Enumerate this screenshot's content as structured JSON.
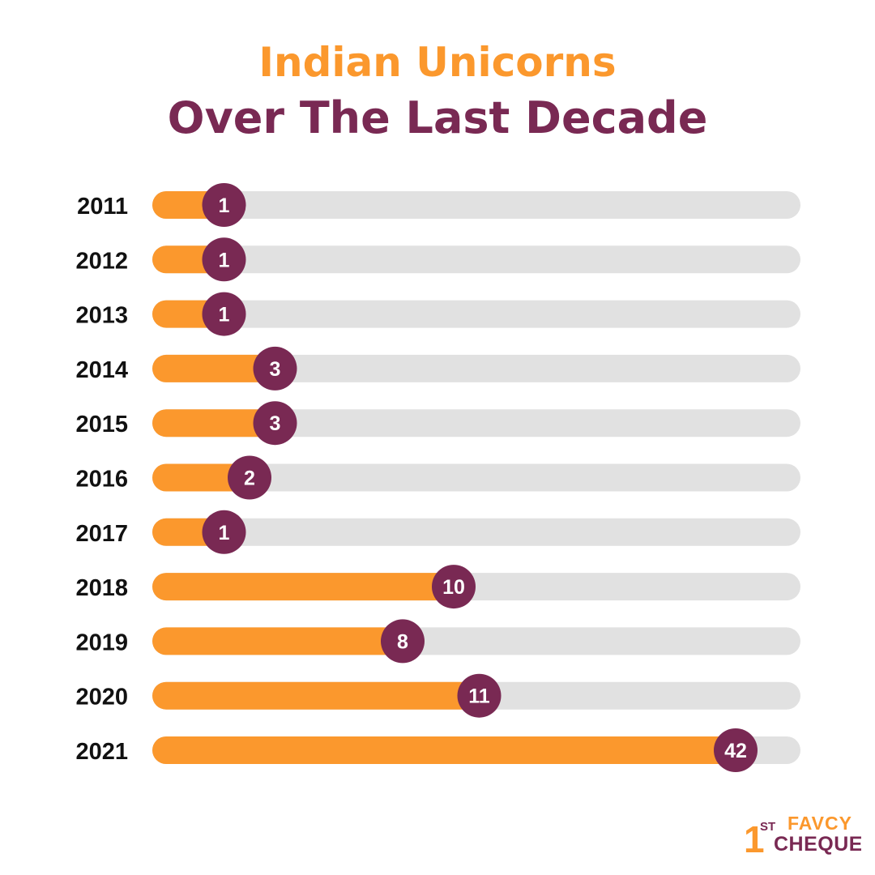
{
  "colors": {
    "accent_orange": "#FB982D",
    "accent_purple": "#792953",
    "track_gray": "#E1E1E1",
    "label_black": "#111111"
  },
  "title_line1": "Indian Unicorns",
  "title_line2": "Over The Last Decade",
  "chart_data": {
    "type": "bar",
    "orientation": "horizontal",
    "title": "Indian Unicorns Over The Last Decade",
    "categories": [
      "2011",
      "2012",
      "2013",
      "2014",
      "2015",
      "2016",
      "2017",
      "2018",
      "2019",
      "2020",
      "2021"
    ],
    "values": [
      1,
      1,
      1,
      3,
      3,
      2,
      1,
      10,
      8,
      11,
      42
    ],
    "data_labels": [
      "1",
      "1",
      "1",
      "3",
      "3",
      "2",
      "1",
      "10",
      "8",
      "11",
      "42"
    ],
    "xlabel": "",
    "ylabel": "",
    "grid": false,
    "legend": "none"
  },
  "logo": {
    "numeral": "1",
    "superscript": "ST",
    "line1": "FAVCY",
    "line2": "CHEQUE"
  }
}
